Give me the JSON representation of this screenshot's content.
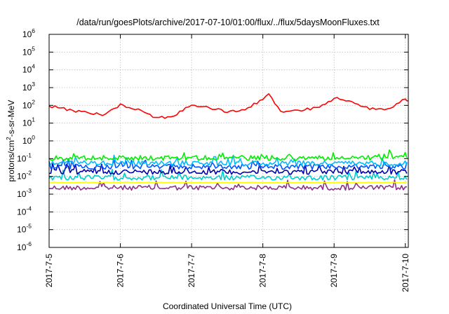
{
  "chart_data": {
    "type": "line",
    "title": "/data/run/goesPlots/archive/2017-07-10/01:00/flux/../flux/5daysMoonFluxes.txt",
    "xlabel": "Coordinated Universal Time (UTC)",
    "ylabel": "protons/cm²-s-sr-MeV",
    "ylabel_parts": [
      "protons/cm",
      "2",
      "-s-sr-MeV"
    ],
    "y_scale": "log",
    "ylim": [
      1e-06,
      1000000.0
    ],
    "y_ticks": [
      {
        "base": "10",
        "exp": "-6"
      },
      {
        "base": "10",
        "exp": "-5"
      },
      {
        "base": "10",
        "exp": "-4"
      },
      {
        "base": "10",
        "exp": "-3"
      },
      {
        "base": "10",
        "exp": "-2"
      },
      {
        "base": "10",
        "exp": "-1"
      },
      {
        "base": "10",
        "exp": "0"
      },
      {
        "base": "10",
        "exp": "1"
      },
      {
        "base": "10",
        "exp": "2"
      },
      {
        "base": "10",
        "exp": "3"
      },
      {
        "base": "10",
        "exp": "4"
      },
      {
        "base": "10",
        "exp": "5"
      },
      {
        "base": "10",
        "exp": "6"
      }
    ],
    "xlim": [
      "2017-07-05 00:00",
      "2017-07-10 01:00"
    ],
    "x_ticks": [
      "2017-7-5",
      "2017-7-6",
      "2017-7-7",
      "2017-7-8",
      "2017-7-9",
      "2017-7-10"
    ],
    "grid": true,
    "series": [
      {
        "color": "#ff0000",
        "x": [
          "2017-07-05 00:00",
          "2017-07-05 06:00",
          "2017-07-05 12:00",
          "2017-07-05 18:00",
          "2017-07-06 00:00",
          "2017-07-06 06:00",
          "2017-07-06 12:00",
          "2017-07-06 18:00",
          "2017-07-07 00:00",
          "2017-07-07 06:00",
          "2017-07-07 12:00",
          "2017-07-07 18:00",
          "2017-07-08 00:00",
          "2017-07-08 02:00",
          "2017-07-08 06:00",
          "2017-07-08 12:00",
          "2017-07-08 18:00",
          "2017-07-09 00:00",
          "2017-07-09 06:00",
          "2017-07-09 12:00",
          "2017-07-09 18:00",
          "2017-07-10 00:00",
          "2017-07-10 01:00"
        ],
        "y": [
          90,
          60,
          40,
          30,
          110,
          60,
          20,
          25,
          110,
          70,
          45,
          50,
          250,
          400,
          45,
          50,
          70,
          250,
          160,
          70,
          60,
          250,
          180
        ]
      },
      {
        "color": "#00ee00",
        "x": [
          "2017-07-05 00:00",
          "2017-07-10 01:00"
        ],
        "y": [
          0.11,
          0.11
        ]
      },
      {
        "color": "#00bbff",
        "x": [
          "2017-07-05 00:00",
          "2017-07-10 01:00"
        ],
        "y": [
          0.055,
          0.055
        ]
      },
      {
        "color": "#0055ff",
        "x": [
          "2017-07-05 00:00",
          "2017-07-10 01:00"
        ],
        "y": [
          0.035,
          0.035
        ]
      },
      {
        "color": "#0000aa",
        "x": [
          "2017-07-05 00:00",
          "2017-07-10 01:00"
        ],
        "y": [
          0.018,
          0.018
        ]
      },
      {
        "color": "#00cccc",
        "x": [
          "2017-07-05 00:00",
          "2017-07-10 01:00"
        ],
        "y": [
          0.0085,
          0.0085
        ]
      },
      {
        "color": "#ffff00",
        "x": [
          "2017-07-05 00:00",
          "2017-07-10 01:00"
        ],
        "y": [
          0.0045,
          0.0045
        ]
      },
      {
        "color": "#883388",
        "x": [
          "2017-07-05 00:00",
          "2017-07-10 01:00"
        ],
        "y": [
          0.0023,
          0.0023
        ]
      }
    ]
  }
}
